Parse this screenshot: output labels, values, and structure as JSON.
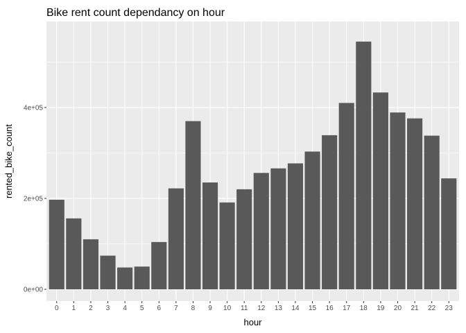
{
  "chart_data": {
    "type": "bar",
    "title": "Bike rent count dependancy on hour",
    "xlabel": "hour",
    "ylabel": "rented_bike_count",
    "categories": [
      "0",
      "1",
      "2",
      "3",
      "4",
      "5",
      "6",
      "7",
      "8",
      "9",
      "10",
      "11",
      "12",
      "13",
      "14",
      "15",
      "16",
      "17",
      "18",
      "19",
      "20",
      "21",
      "22",
      "23"
    ],
    "values": [
      197000,
      156000,
      110000,
      74000,
      48000,
      50000,
      104000,
      222000,
      370000,
      235000,
      191000,
      220000,
      256000,
      266000,
      277000,
      303000,
      339000,
      410000,
      545000,
      433000,
      389000,
      376000,
      338000,
      244000
    ],
    "ylim": [
      0,
      580000
    ],
    "yticks": [
      0,
      200000,
      400000
    ],
    "ytick_labels": [
      "0e+00",
      "2e+05",
      "4e+05"
    ],
    "grid": true,
    "bar_color": "#595959",
    "panel_color": "#ebebeb",
    "grid_color": "#ffffff"
  }
}
